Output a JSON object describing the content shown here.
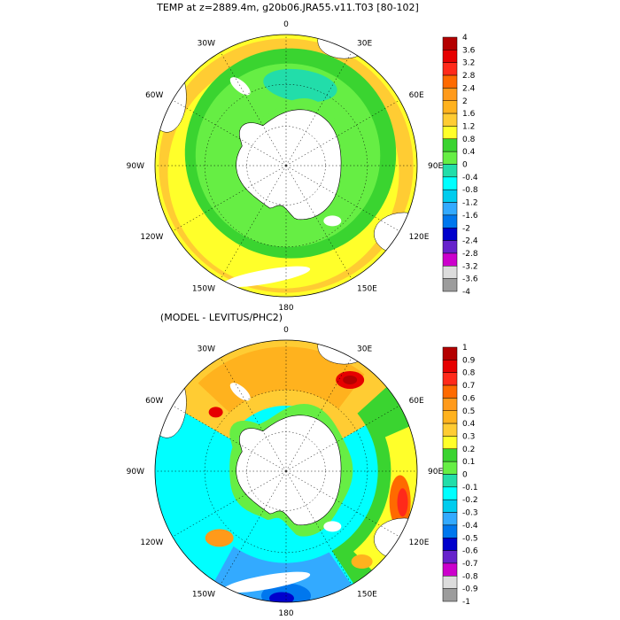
{
  "top_panel": {
    "title": "TEMP at z=2889.4m, g20b06.JRA55.v11.T03 [80-102]",
    "colorbar": {
      "labels": [
        "4",
        "3.6",
        "3.2",
        "2.8",
        "2.4",
        "2",
        "1.6",
        "1.2",
        "0.8",
        "0.4",
        "0",
        "-0.4",
        "-0.8",
        "-1.2",
        "-1.6",
        "-2",
        "-2.4",
        "-2.8",
        "-3.2",
        "-3.6",
        "-4"
      ],
      "colors": [
        "#b40000",
        "#e60000",
        "#ff2a1a",
        "#ff6a00",
        "#ff9a1a",
        "#ffb21e",
        "#ffcc33",
        "#ffff2a",
        "#3ad430",
        "#66ee44",
        "#22ddaa",
        "#00ffff",
        "#00ccee",
        "#33aaff",
        "#0077ee",
        "#0000cc",
        "#6622cc",
        "#cc00cc",
        "#dcdcdc",
        "#9c9c9c"
      ]
    }
  },
  "bottom_panel": {
    "title": "(MODEL - LEVITUS/PHC2)",
    "colorbar": {
      "labels": [
        "1",
        "0.9",
        "0.8",
        "0.7",
        "0.6",
        "0.5",
        "0.4",
        "0.3",
        "0.2",
        "0.1",
        "0",
        "-0.1",
        "-0.2",
        "-0.3",
        "-0.4",
        "-0.5",
        "-0.6",
        "-0.7",
        "-0.8",
        "-0.9",
        "-1"
      ],
      "colors": [
        "#b40000",
        "#e60000",
        "#ff2a1a",
        "#ff6a00",
        "#ff9a1a",
        "#ffb21e",
        "#ffcc33",
        "#ffff2a",
        "#3ad430",
        "#66ee44",
        "#22ddaa",
        "#00ffff",
        "#00ccee",
        "#33aaff",
        "#0077ee",
        "#0000cc",
        "#6622cc",
        "#cc00cc",
        "#dcdcdc",
        "#9c9c9c"
      ]
    }
  },
  "longitude_labels": [
    "0",
    "30E",
    "60E",
    "90E",
    "120E",
    "150E",
    "180",
    "150W",
    "120W",
    "90W",
    "60W",
    "30W"
  ],
  "land_color": "#ffffff",
  "graticule": "dotted"
}
